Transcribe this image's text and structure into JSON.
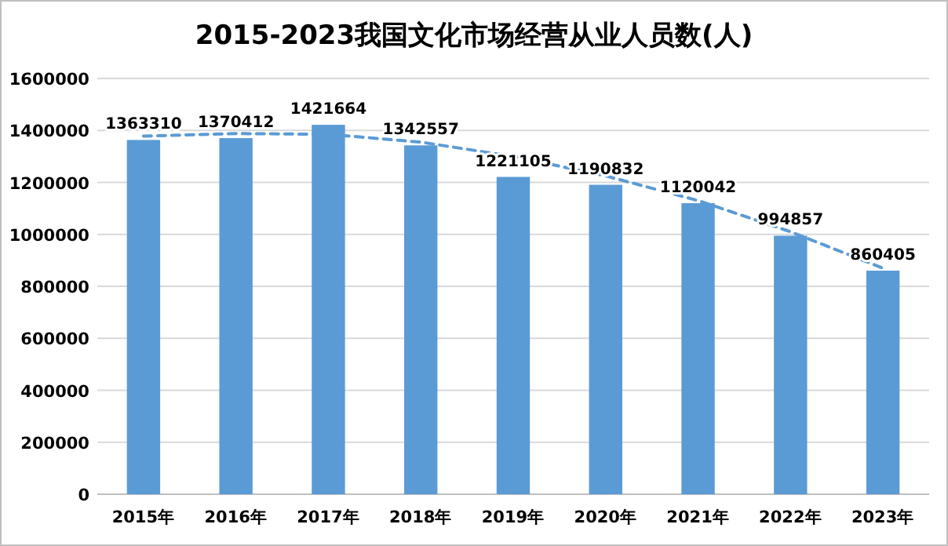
{
  "chart_data": {
    "type": "bar",
    "title": "2015-2023我国文化市场经营从业人员数(人)",
    "categories": [
      "2015年",
      "2016年",
      "2017年",
      "2018年",
      "2019年",
      "2020年",
      "2021年",
      "2022年",
      "2023年"
    ],
    "series": [
      {
        "color": "#5b9bd5",
        "values": [
          1363310,
          1370412,
          1421664,
          1342557,
          1221105,
          1190832,
          1120042,
          994857,
          860405
        ],
        "value_labels": [
          "1363310",
          "1370412",
          "1421664",
          "1342557",
          "1221105",
          "1190832",
          "1120042",
          "994857",
          "860405"
        ]
      },
      {
        "type": "line",
        "color": "#5b9bd5",
        "line_style": "dashed",
        "marker": "none",
        "x": [
          "2015年",
          "2016年",
          "2017年",
          "2018年",
          "2019年",
          "2020年",
          "2021年",
          "2022年",
          "2023年"
        ],
        "values": [
          1378000,
          1388000,
          1385000,
          1355000,
          1300000,
          1225000,
          1130000,
          1010000,
          870000
        ]
      }
    ],
    "ylim": [
      0,
      1600000
    ],
    "yticks": [
      0,
      200000,
      400000,
      600000,
      800000,
      1000000,
      1200000,
      1400000,
      1600000
    ],
    "grid": "y"
  }
}
